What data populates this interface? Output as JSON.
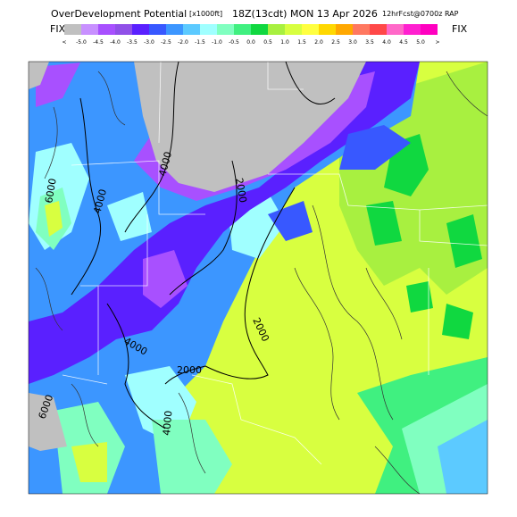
{
  "header": {
    "title": "OverDevelopment Potential",
    "units": "[x1000ft]",
    "valid": "18Z(13cdt) MON 13 Apr 2026",
    "forecast": "12hrFcst@0700z RAP",
    "left_tag": "FIX",
    "right_tag": "FIX"
  },
  "colorbar": {
    "labels": [
      "<",
      "-5.0",
      "-4.5",
      "-4.0",
      "-3.5",
      "-3.0",
      "-2.5",
      "-2.0",
      "-1.5",
      "-1.0",
      "-0.5",
      "0.0",
      "0.5",
      "1.0",
      "1.5",
      "2.0",
      "2.5",
      "3.0",
      "3.5",
      "4.0",
      "4.5",
      "5.0",
      ">"
    ],
    "colors": [
      "#c0c0c0",
      "#c890ff",
      "#a850ff",
      "#9050e8",
      "#5a20ff",
      "#3858ff",
      "#3c96ff",
      "#5ccaff",
      "#a0ffff",
      "#80ffc0",
      "#40f080",
      "#10d840",
      "#a8f040",
      "#d8ff40",
      "#ffff40",
      "#ffd800",
      "#ffa800",
      "#ff7860",
      "#ff4848",
      "#ff68c8",
      "#ff20d0",
      "#ff00c0"
    ]
  },
  "contours": {
    "labels": [
      "6000",
      "4000",
      "4000",
      "2000",
      "2000",
      "2000",
      "4000",
      "6000",
      "4000"
    ]
  }
}
